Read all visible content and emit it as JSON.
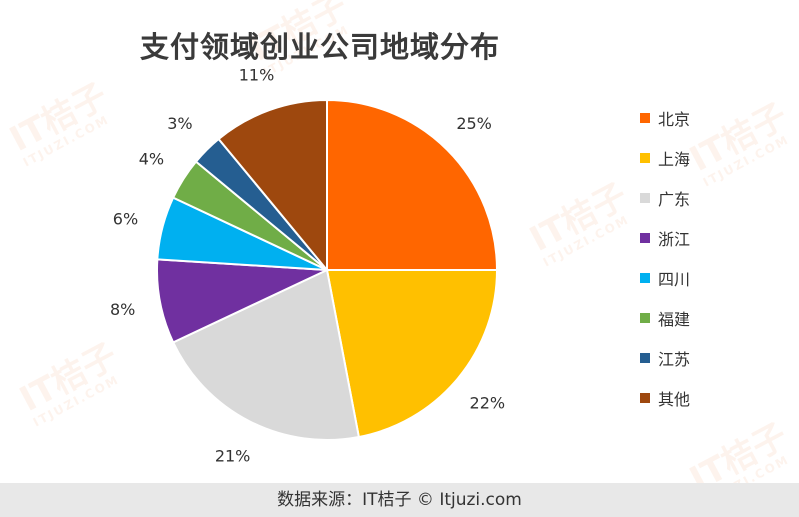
{
  "title": "支付领域创业公司地域分布",
  "footer": "数据来源：IT桔子 © Itjuzi.com",
  "watermark": {
    "text": "IT桔子",
    "subtext": "ITJUZI.COM"
  },
  "chart_data": {
    "type": "pie",
    "title": "支付领域创业公司地域分布",
    "categories": [
      "北京",
      "上海",
      "广东",
      "浙江",
      "四川",
      "福建",
      "江苏",
      "其他"
    ],
    "values": [
      25,
      22,
      21,
      8,
      6,
      4,
      3,
      11
    ],
    "value_labels": [
      "25%",
      "22%",
      "21%",
      "8%",
      "6%",
      "4%",
      "3%",
      "11%"
    ],
    "colors": [
      "#ff6600",
      "#ffc000",
      "#d9d9d9",
      "#7030a0",
      "#00b0f0",
      "#70ad47",
      "#255e91",
      "#9e480e"
    ],
    "legend_position": "right"
  }
}
